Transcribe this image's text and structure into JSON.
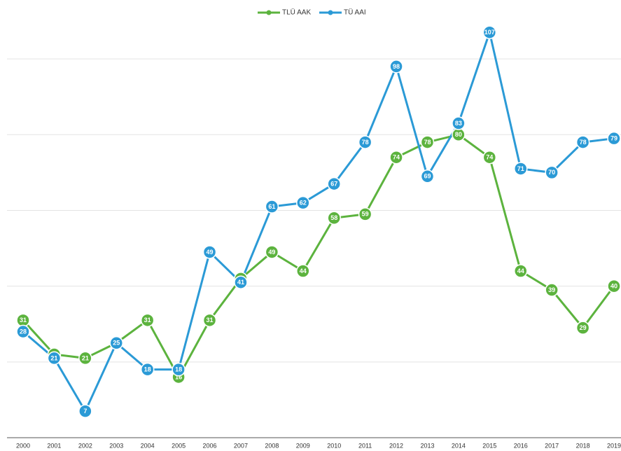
{
  "chart_data": {
    "type": "line",
    "categories": [
      "2000",
      "2001",
      "2002",
      "2003",
      "2004",
      "2005",
      "2006",
      "2007",
      "2008",
      "2009",
      "2010",
      "2011",
      "2012",
      "2013",
      "2014",
      "2015",
      "2016",
      "2017",
      "2018",
      "2019"
    ],
    "series": [
      {
        "name": "TLÜ AAK",
        "color": "#5cb33e",
        "values": [
          31,
          22,
          21,
          25,
          31,
          16,
          31,
          42,
          49,
          44,
          58,
          59,
          74,
          78,
          80,
          74,
          44,
          39,
          29,
          40
        ]
      },
      {
        "name": "TÜ AAI",
        "color": "#2b9ad6",
        "values": [
          28,
          21,
          7,
          25,
          18,
          18,
          49,
          41,
          61,
          62,
          67,
          78,
          98,
          69,
          83,
          107,
          71,
          70,
          78,
          79
        ]
      }
    ],
    "ylim": [
      0,
      110
    ],
    "yticks": [
      0,
      20,
      40,
      60,
      80,
      100
    ],
    "grid": true
  }
}
